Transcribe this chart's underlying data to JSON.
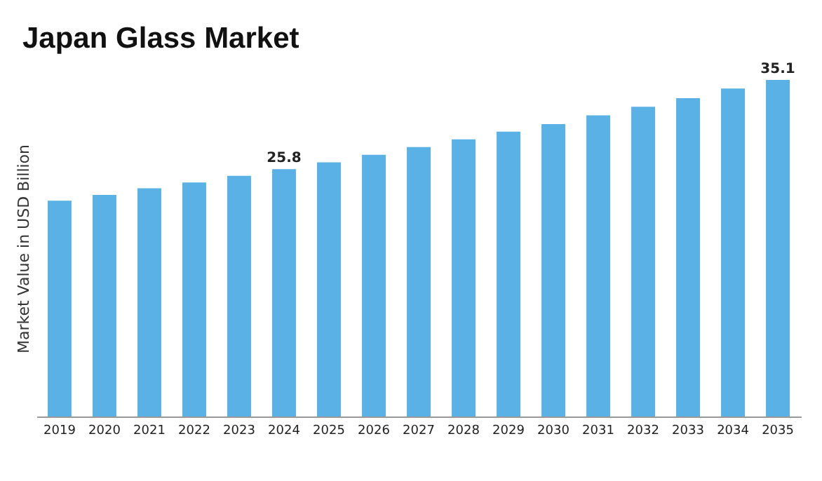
{
  "chart_data": {
    "type": "bar",
    "title": "Japan Glass Market",
    "ylabel": "Market Value in USD Billion",
    "categories": [
      "2019",
      "2020",
      "2021",
      "2022",
      "2023",
      "2024",
      "2025",
      "2026",
      "2027",
      "2028",
      "2029",
      "2030",
      "2031",
      "2032",
      "2033",
      "2034",
      "2035"
    ],
    "values": [
      22.5,
      23.1,
      23.8,
      24.4,
      25.1,
      25.8,
      26.5,
      27.3,
      28.1,
      28.9,
      29.7,
      30.5,
      31.4,
      32.3,
      33.2,
      34.2,
      35.1
    ],
    "value_labels": [
      null,
      null,
      null,
      null,
      null,
      "25.8",
      null,
      null,
      null,
      null,
      null,
      null,
      null,
      null,
      null,
      null,
      "35.1"
    ],
    "color": "#5ab1e6",
    "grid": false
  }
}
